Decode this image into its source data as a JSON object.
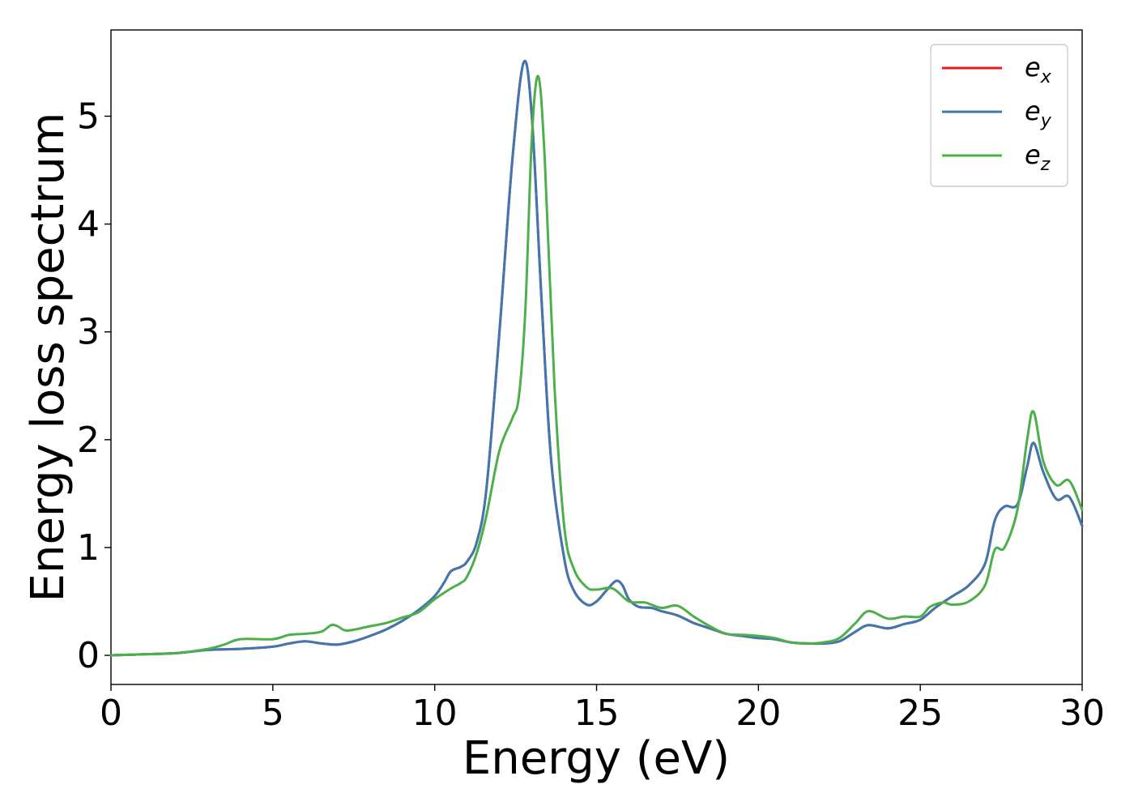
{
  "chart_data": {
    "type": "line",
    "title": "",
    "xlabel": "Energy (eV)",
    "ylabel": "Energy loss spectrum",
    "xlim": [
      0,
      30
    ],
    "ylim": [
      -0.27,
      5.8
    ],
    "grid": false,
    "legend_position": "top-right",
    "x_ticks": [
      "0",
      "5",
      "10",
      "15",
      "20",
      "25",
      "30"
    ],
    "y_ticks": [
      "0",
      "1",
      "2",
      "3",
      "4",
      "5"
    ],
    "series": [
      {
        "name": "e_x",
        "legend_base": "e",
        "legend_sub": "x",
        "color": "#e41a1c",
        "points": [
          [
            0,
            0
          ],
          [
            1,
            0.01
          ],
          [
            2,
            0.02
          ],
          [
            3,
            0.05
          ],
          [
            4,
            0.06
          ],
          [
            5,
            0.08
          ],
          [
            5.5,
            0.11
          ],
          [
            6,
            0.13
          ],
          [
            6.5,
            0.11
          ],
          [
            7,
            0.1
          ],
          [
            7.5,
            0.13
          ],
          [
            8,
            0.18
          ],
          [
            8.5,
            0.24
          ],
          [
            9,
            0.32
          ],
          [
            9.5,
            0.42
          ],
          [
            10,
            0.55
          ],
          [
            10.3,
            0.68
          ],
          [
            10.5,
            0.78
          ],
          [
            10.8,
            0.82
          ],
          [
            11,
            0.87
          ],
          [
            11.3,
            1.05
          ],
          [
            11.6,
            1.55
          ],
          [
            12,
            3.0
          ],
          [
            12.4,
            4.6
          ],
          [
            12.75,
            5.5
          ],
          [
            13,
            5.0
          ],
          [
            13.3,
            3.3
          ],
          [
            13.6,
            1.8
          ],
          [
            14,
            0.9
          ],
          [
            14.3,
            0.6
          ],
          [
            14.7,
            0.47
          ],
          [
            15,
            0.5
          ],
          [
            15.3,
            0.6
          ],
          [
            15.6,
            0.69
          ],
          [
            15.8,
            0.65
          ],
          [
            16,
            0.52
          ],
          [
            16.3,
            0.45
          ],
          [
            16.7,
            0.44
          ],
          [
            17,
            0.41
          ],
          [
            17.5,
            0.37
          ],
          [
            18,
            0.3
          ],
          [
            18.5,
            0.25
          ],
          [
            19,
            0.2
          ],
          [
            19.5,
            0.18
          ],
          [
            20,
            0.16
          ],
          [
            20.5,
            0.15
          ],
          [
            21,
            0.12
          ],
          [
            21.5,
            0.11
          ],
          [
            22,
            0.11
          ],
          [
            22.5,
            0.13
          ],
          [
            23,
            0.22
          ],
          [
            23.4,
            0.28
          ],
          [
            24,
            0.25
          ],
          [
            24.5,
            0.29
          ],
          [
            25,
            0.33
          ],
          [
            25.5,
            0.45
          ],
          [
            26,
            0.55
          ],
          [
            26.5,
            0.65
          ],
          [
            27,
            0.85
          ],
          [
            27.3,
            1.25
          ],
          [
            27.6,
            1.38
          ],
          [
            28,
            1.4
          ],
          [
            28.3,
            1.75
          ],
          [
            28.5,
            1.97
          ],
          [
            28.8,
            1.7
          ],
          [
            29.2,
            1.45
          ],
          [
            29.6,
            1.47
          ],
          [
            30,
            1.2
          ]
        ]
      },
      {
        "name": "e_y",
        "legend_base": "e",
        "legend_sub": "y",
        "color": "#3f78b0",
        "points": [
          [
            0,
            0
          ],
          [
            1,
            0.01
          ],
          [
            2,
            0.02
          ],
          [
            3,
            0.05
          ],
          [
            4,
            0.06
          ],
          [
            5,
            0.08
          ],
          [
            5.5,
            0.11
          ],
          [
            6,
            0.13
          ],
          [
            6.5,
            0.11
          ],
          [
            7,
            0.1
          ],
          [
            7.5,
            0.13
          ],
          [
            8,
            0.18
          ],
          [
            8.5,
            0.24
          ],
          [
            9,
            0.32
          ],
          [
            9.5,
            0.42
          ],
          [
            10,
            0.55
          ],
          [
            10.3,
            0.68
          ],
          [
            10.5,
            0.78
          ],
          [
            10.8,
            0.82
          ],
          [
            11,
            0.87
          ],
          [
            11.3,
            1.05
          ],
          [
            11.6,
            1.55
          ],
          [
            12,
            3.0
          ],
          [
            12.4,
            4.6
          ],
          [
            12.75,
            5.5
          ],
          [
            13,
            5.0
          ],
          [
            13.3,
            3.3
          ],
          [
            13.6,
            1.8
          ],
          [
            14,
            0.9
          ],
          [
            14.3,
            0.6
          ],
          [
            14.7,
            0.47
          ],
          [
            15,
            0.5
          ],
          [
            15.3,
            0.6
          ],
          [
            15.6,
            0.69
          ],
          [
            15.8,
            0.65
          ],
          [
            16,
            0.52
          ],
          [
            16.3,
            0.45
          ],
          [
            16.7,
            0.44
          ],
          [
            17,
            0.41
          ],
          [
            17.5,
            0.37
          ],
          [
            18,
            0.3
          ],
          [
            18.5,
            0.25
          ],
          [
            19,
            0.2
          ],
          [
            19.5,
            0.18
          ],
          [
            20,
            0.16
          ],
          [
            20.5,
            0.15
          ],
          [
            21,
            0.12
          ],
          [
            21.5,
            0.11
          ],
          [
            22,
            0.11
          ],
          [
            22.5,
            0.13
          ],
          [
            23,
            0.22
          ],
          [
            23.4,
            0.28
          ],
          [
            24,
            0.25
          ],
          [
            24.5,
            0.29
          ],
          [
            25,
            0.33
          ],
          [
            25.5,
            0.45
          ],
          [
            26,
            0.55
          ],
          [
            26.5,
            0.65
          ],
          [
            27,
            0.85
          ],
          [
            27.3,
            1.25
          ],
          [
            27.6,
            1.38
          ],
          [
            28,
            1.4
          ],
          [
            28.3,
            1.75
          ],
          [
            28.5,
            1.97
          ],
          [
            28.8,
            1.7
          ],
          [
            29.2,
            1.45
          ],
          [
            29.6,
            1.47
          ],
          [
            30,
            1.2
          ]
        ]
      },
      {
        "name": "e_z",
        "legend_base": "e",
        "legend_sub": "z",
        "color": "#4daf4a",
        "points": [
          [
            0,
            0
          ],
          [
            1,
            0.01
          ],
          [
            2,
            0.02
          ],
          [
            3,
            0.06
          ],
          [
            3.5,
            0.1
          ],
          [
            4,
            0.15
          ],
          [
            5,
            0.15
          ],
          [
            5.5,
            0.19
          ],
          [
            6,
            0.2
          ],
          [
            6.5,
            0.22
          ],
          [
            6.8,
            0.28
          ],
          [
            7,
            0.27
          ],
          [
            7.3,
            0.23
          ],
          [
            8,
            0.27
          ],
          [
            8.5,
            0.3
          ],
          [
            9,
            0.35
          ],
          [
            9.5,
            0.4
          ],
          [
            10,
            0.52
          ],
          [
            10.5,
            0.62
          ],
          [
            10.8,
            0.67
          ],
          [
            11,
            0.73
          ],
          [
            11.3,
            0.95
          ],
          [
            11.6,
            1.3
          ],
          [
            12,
            1.9
          ],
          [
            12.4,
            2.2
          ],
          [
            12.6,
            2.4
          ],
          [
            12.8,
            3.2
          ],
          [
            13,
            4.8
          ],
          [
            13.2,
            5.37
          ],
          [
            13.4,
            4.6
          ],
          [
            13.7,
            2.5
          ],
          [
            14,
            1.2
          ],
          [
            14.3,
            0.8
          ],
          [
            14.7,
            0.63
          ],
          [
            15,
            0.61
          ],
          [
            15.5,
            0.62
          ],
          [
            16,
            0.5
          ],
          [
            16.5,
            0.49
          ],
          [
            17,
            0.44
          ],
          [
            17.5,
            0.46
          ],
          [
            18,
            0.36
          ],
          [
            18.5,
            0.27
          ],
          [
            19,
            0.2
          ],
          [
            19.5,
            0.19
          ],
          [
            20,
            0.18
          ],
          [
            20.5,
            0.16
          ],
          [
            21,
            0.12
          ],
          [
            21.5,
            0.11
          ],
          [
            22,
            0.12
          ],
          [
            22.5,
            0.16
          ],
          [
            23,
            0.3
          ],
          [
            23.4,
            0.41
          ],
          [
            24,
            0.34
          ],
          [
            24.5,
            0.36
          ],
          [
            25,
            0.36
          ],
          [
            25.3,
            0.45
          ],
          [
            25.7,
            0.49
          ],
          [
            26,
            0.47
          ],
          [
            26.5,
            0.5
          ],
          [
            27,
            0.65
          ],
          [
            27.3,
            0.98
          ],
          [
            27.6,
            1.0
          ],
          [
            28,
            1.35
          ],
          [
            28.3,
            2.0
          ],
          [
            28.5,
            2.26
          ],
          [
            28.8,
            1.8
          ],
          [
            29.2,
            1.58
          ],
          [
            29.6,
            1.62
          ],
          [
            30,
            1.35
          ]
        ]
      }
    ]
  }
}
